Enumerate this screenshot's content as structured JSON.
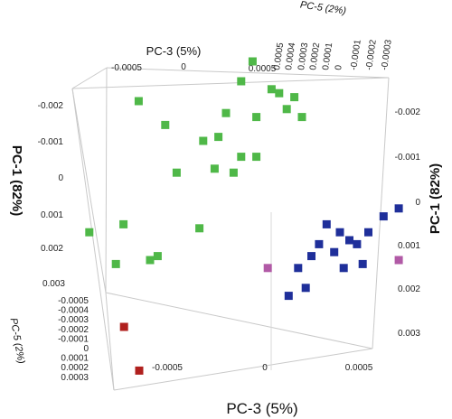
{
  "chart_data": {
    "type": "scatter",
    "projection": "3d",
    "axes": {
      "x_front": {
        "label": "PC-3 (5%)",
        "ticks": [
          "-0.0005",
          "0",
          "0.0005"
        ]
      },
      "x_top": {
        "label": "PC-3 (5%)",
        "ticks": [
          "-0.0005",
          "0",
          "0.0005"
        ]
      },
      "y_left": {
        "label": "PC-1 (82%)",
        "ticks": [
          "-0.002",
          "-0.001",
          "0",
          "0.001",
          "0.002",
          "0.003"
        ]
      },
      "y_right": {
        "label": "PC-1 (82%)",
        "ticks": [
          "-0.002",
          "-0.001",
          "0",
          "0.001",
          "0.002",
          "0.003"
        ]
      },
      "z_left": {
        "label": "PC-5 (2%)",
        "ticks": [
          "-0.0005",
          "-0.0004",
          "-0.0003",
          "-0.0002",
          "-0.0001",
          "0",
          "0.0001",
          "0.0002",
          "0.0003"
        ]
      },
      "z_top": {
        "label": "PC-5 (2%)",
        "ticks": [
          "0.0005",
          "0.0004",
          "0.0003",
          "0.0002",
          "0.0001",
          "0",
          "-0.0001",
          "-0.0002",
          "-0.0003"
        ]
      }
    },
    "series": [
      {
        "color": "#4fb848",
        "points": [
          [
            -0.00012,
            -0.0025,
            -0.0003
          ],
          [
            4e-05,
            -0.0023,
            -0.0003
          ],
          [
            8e-05,
            -0.0022,
            -0.0003
          ],
          [
            -0.00066,
            -0.002,
            -0.0003
          ],
          [
            0.00016,
            -0.0021,
            -0.0003
          ],
          [
            -0.0002,
            -0.0017,
            -0.0003
          ],
          [
            -4e-05,
            -0.0016,
            -0.0003
          ],
          [
            0.00012,
            -0.0018,
            -0.0003
          ],
          [
            0.0002,
            -0.0016,
            -0.0003
          ],
          [
            -0.00052,
            -0.0014,
            -0.0003
          ],
          [
            -0.00032,
            -0.001,
            -0.0003
          ],
          [
            -0.00024,
            -0.0011,
            -0.0003
          ],
          [
            -0.00012,
            -0.0006,
            -0.0003
          ],
          [
            -4e-05,
            -0.0006,
            -0.0003
          ],
          [
            -0.00026,
            -0.0003,
            -0.0003
          ],
          [
            -0.00016,
            -0.0002,
            -0.0003
          ],
          [
            -0.00046,
            -0.0002,
            -0.0003
          ],
          [
            -0.00074,
            0.0011,
            -0.0003
          ],
          [
            -0.00034,
            0.0012,
            -0.0003
          ],
          [
            -0.00056,
            0.0019,
            -0.0003
          ],
          [
            -0.0006,
            0.002,
            -0.0003
          ],
          [
            -0.00078,
            0.0021,
            -0.0003
          ],
          [
            -0.00092,
            0.0013,
            -0.0003
          ],
          [
            -6e-05,
            -0.003,
            -0.0003
          ]
        ]
      },
      {
        "color": "#1f2f9a",
        "points": [
          [
            0.00071,
            0.0007,
            -0.0003
          ],
          [
            0.00063,
            0.0009,
            -0.0003
          ],
          [
            0.00055,
            0.0013,
            -0.0003
          ],
          [
            0.00049,
            0.0016,
            -0.0003
          ],
          [
            0.00045,
            0.0015,
            -0.0003
          ],
          [
            0.0004,
            0.0013,
            -0.0003
          ],
          [
            0.00033,
            0.0011,
            -0.0003
          ],
          [
            0.00037,
            0.0018,
            -0.0003
          ],
          [
            0.00029,
            0.0016,
            -0.0003
          ],
          [
            0.00025,
            0.0019,
            -0.0003
          ],
          [
            0.00018,
            0.0022,
            -0.0003
          ],
          [
            0.00022,
            0.0027,
            -0.0003
          ],
          [
            0.00013,
            0.0029,
            -0.0003
          ],
          [
            0.00052,
            0.0021,
            -0.0003
          ],
          [
            0.00042,
            0.0022,
            -0.0003
          ]
        ]
      },
      {
        "color": "#b15aa6",
        "points": [
          [
            2e-05,
            0.0022,
            -0.0003
          ],
          [
            0.00071,
            0.002,
            -0.0003
          ]
        ]
      },
      {
        "color": "#b0201e",
        "points": [
          [
            -0.00038,
            0.0005,
            0.0003
          ],
          [
            -0.0003,
            0.0016,
            0.0003
          ]
        ]
      }
    ]
  }
}
